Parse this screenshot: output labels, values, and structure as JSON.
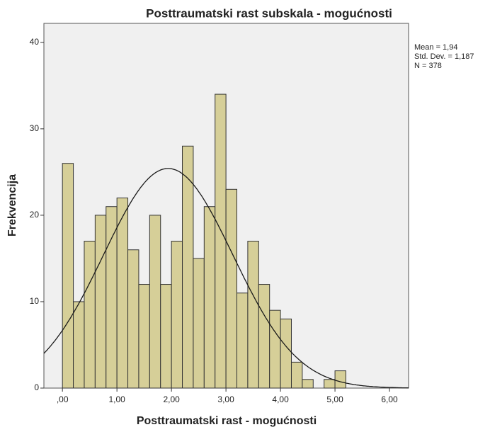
{
  "chart_data": {
    "type": "histogram",
    "title": "Posttraumatski rast subskala - mogućnosti",
    "x_label": "Posttraumatski rast - mogućnosti",
    "y_label": "Frekvencija",
    "bins": [
      0,
      0.2,
      0.4,
      0.6,
      0.8,
      1,
      1.2,
      1.4,
      1.6,
      1.8,
      2,
      2.2,
      2.4,
      2.6,
      2.8,
      3,
      3.2,
      3.4,
      3.6,
      3.8,
      4,
      4.2,
      4.4,
      4.6,
      4.8,
      5,
      5.2
    ],
    "values": [
      26,
      10,
      17,
      20,
      21,
      22,
      16,
      12,
      20,
      12,
      17,
      28,
      15,
      21,
      34,
      23,
      11,
      17,
      12,
      9,
      8,
      3,
      1,
      0,
      1,
      2
    ],
    "color": "#d6cf98",
    "curve_color": "#1a1a1a",
    "stats": [
      {
        "value": 1.94,
        "label": "Mean = 1,94"
      },
      {
        "value": 1.187,
        "label": "Std. Dev. = 1,187"
      },
      {
        "value": 378,
        "label": "N = 378"
      }
    ],
    "xlim": [
      -0.34,
      6.35
    ],
    "ylim": [
      0,
      42.2
    ],
    "xticks": [
      {
        "value": 0,
        "label": ",00"
      },
      {
        "value": 1,
        "label": "1,00"
      },
      {
        "value": 2,
        "label": "2,00"
      },
      {
        "value": 3,
        "label": "3,00"
      },
      {
        "value": 4,
        "label": "4,00"
      },
      {
        "value": 5,
        "label": "5,00"
      },
      {
        "value": 6,
        "label": "6,00"
      }
    ],
    "yticks": [
      0,
      10,
      20,
      30,
      40
    ]
  }
}
